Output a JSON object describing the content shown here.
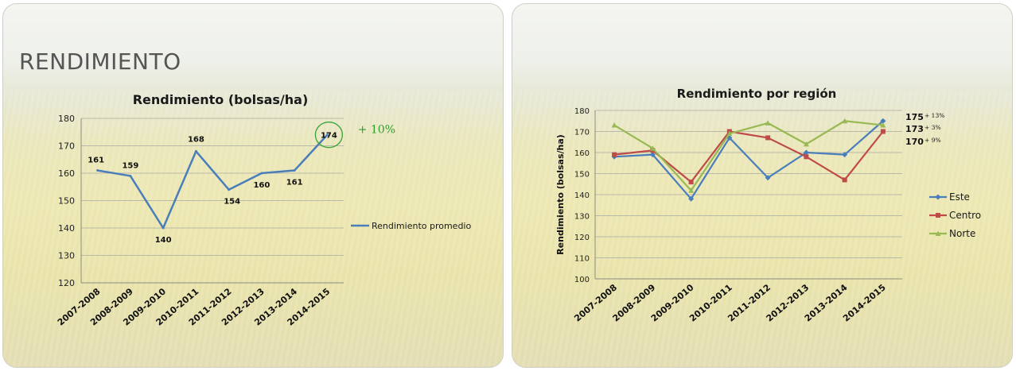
{
  "slides": {
    "left_heading": "RENDIMIENTO"
  },
  "chart_data": [
    {
      "type": "line",
      "title": "Rendimiento (bolsas/ha)",
      "xlabel": "",
      "ylabel": "",
      "categories": [
        "2007-2008",
        "2008-2009",
        "2009-2010",
        "2010-2011",
        "2011-2012",
        "2012-2013",
        "2013-2014",
        "2014-2015"
      ],
      "ylim": [
        120,
        180
      ],
      "yticks": [
        120,
        130,
        140,
        150,
        160,
        170,
        180
      ],
      "grid": true,
      "legend": "right",
      "series": [
        {
          "name": "Rendimiento promedio",
          "color": "#4a7ebb",
          "values": [
            161,
            159,
            140,
            168,
            154,
            160,
            161,
            174
          ],
          "data_labels": [
            "161",
            "159",
            "140",
            "168",
            "154",
            "160",
            "161",
            "174"
          ]
        }
      ],
      "annotation": {
        "text": "+ 10%",
        "color": "#2ea12e",
        "circle_color": "#3aa23a"
      }
    },
    {
      "type": "line",
      "title": "Rendimiento por región",
      "xlabel": "",
      "ylabel": "Rendimiento (bolsas/ha)",
      "categories": [
        "2007-2008",
        "2008-2009",
        "2009-2010",
        "2010-2011",
        "2011-2012",
        "2012-2013",
        "2013-2014",
        "2014-2015"
      ],
      "ylim": [
        100,
        180
      ],
      "yticks": [
        100,
        110,
        120,
        130,
        140,
        150,
        160,
        170,
        180
      ],
      "grid": true,
      "legend": "right",
      "series": [
        {
          "name": "Este",
          "color": "#4a7ebb",
          "marker": "diamond",
          "values": [
            158,
            159,
            138,
            167,
            148,
            160,
            159,
            175
          ],
          "end_label": "175",
          "end_pct": "+ 13%"
        },
        {
          "name": "Centro",
          "color": "#be4b48",
          "marker": "square",
          "values": [
            159,
            161,
            146,
            170,
            167,
            158,
            147,
            170
          ],
          "end_label": "170",
          "end_pct": "+ 9%"
        },
        {
          "name": "Norte",
          "color": "#98b954",
          "marker": "triangle",
          "values": [
            173,
            162,
            142,
            169,
            174,
            164,
            175,
            173
          ],
          "end_label": "173",
          "end_pct": "+ 3%"
        }
      ]
    }
  ]
}
